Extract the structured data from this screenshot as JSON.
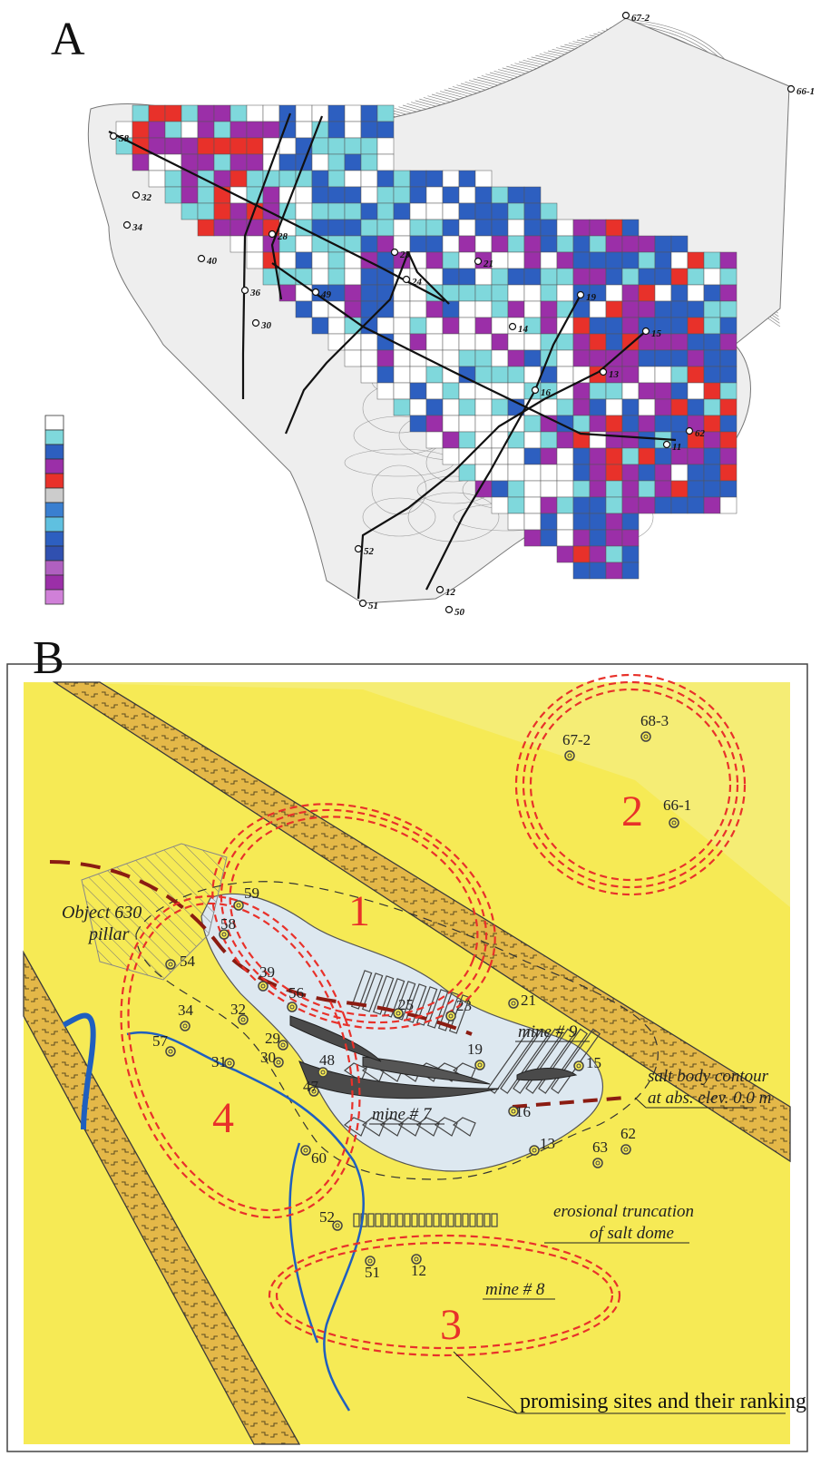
{
  "panel_a": {
    "letter": "A",
    "well_labels": [
      {
        "id": "w67-2",
        "text": "67-2"
      },
      {
        "id": "w66-1",
        "text": "66-1"
      },
      {
        "id": "w58",
        "text": "58"
      },
      {
        "id": "w32",
        "text": "32"
      },
      {
        "id": "w34",
        "text": "34"
      },
      {
        "id": "w40",
        "text": "40"
      },
      {
        "id": "w28",
        "text": "28"
      },
      {
        "id": "w36",
        "text": "36"
      },
      {
        "id": "w30",
        "text": "30"
      },
      {
        "id": "w49",
        "text": "49"
      },
      {
        "id": "w24",
        "text": "24"
      },
      {
        "id": "w25",
        "text": "25"
      },
      {
        "id": "w21",
        "text": "21"
      },
      {
        "id": "w19",
        "text": "19"
      },
      {
        "id": "w14",
        "text": "14"
      },
      {
        "id": "w15",
        "text": "15"
      },
      {
        "id": "w16",
        "text": "16"
      },
      {
        "id": "w13",
        "text": "13"
      },
      {
        "id": "w11",
        "text": "11"
      },
      {
        "id": "w62",
        "text": "62"
      },
      {
        "id": "w52",
        "text": "52"
      },
      {
        "id": "w51",
        "text": "51"
      },
      {
        "id": "w12",
        "text": "12"
      },
      {
        "id": "w50",
        "text": "50"
      }
    ],
    "legend_colors": [
      "#ffffff",
      "#7fd8dc",
      "#2d5fc0",
      "#9b2fa8",
      "#e8312a",
      "#cccccc",
      "#3a7fd0",
      "#5fc0e0",
      "#2d5fc0",
      "#3050b0",
      "#b060c0",
      "#9b2fa8",
      "#d080d8"
    ]
  },
  "panel_b": {
    "letter": "B",
    "site_numbers": [
      "1",
      "2",
      "3",
      "4"
    ],
    "wells": [
      {
        "id": "67-2",
        "label": "67-2"
      },
      {
        "id": "68-3",
        "label": "68-3"
      },
      {
        "id": "66-1",
        "label": "66-1"
      },
      {
        "id": "59",
        "label": "59"
      },
      {
        "id": "58",
        "label": "58"
      },
      {
        "id": "54",
        "label": "54"
      },
      {
        "id": "39",
        "label": "39"
      },
      {
        "id": "56",
        "label": "56"
      },
      {
        "id": "32",
        "label": "32"
      },
      {
        "id": "34",
        "label": "34"
      },
      {
        "id": "57",
        "label": "57"
      },
      {
        "id": "31",
        "label": "31"
      },
      {
        "id": "29",
        "label": "29"
      },
      {
        "id": "30",
        "label": "30"
      },
      {
        "id": "48",
        "label": "48"
      },
      {
        "id": "47",
        "label": "47"
      },
      {
        "id": "25",
        "label": "25"
      },
      {
        "id": "23",
        "label": "23"
      },
      {
        "id": "21",
        "label": "21"
      },
      {
        "id": "19",
        "label": "19"
      },
      {
        "id": "15",
        "label": "15"
      },
      {
        "id": "16",
        "label": "16"
      },
      {
        "id": "13",
        "label": "13"
      },
      {
        "id": "63",
        "label": "63"
      },
      {
        "id": "62",
        "label": "62"
      },
      {
        "id": "60",
        "label": "60"
      },
      {
        "id": "52",
        "label": "52"
      },
      {
        "id": "51",
        "label": "51"
      },
      {
        "id": "12",
        "label": "12"
      }
    ],
    "labels": {
      "object_630": "Object 630",
      "pillar": "pillar",
      "mine9": "mine # 9",
      "mine7": "mine # 7",
      "mine8": "mine # 8",
      "salt_contour_1": "salt body contour",
      "salt_contour_2": "at abs. elev. 0.0 m",
      "erosional_1": "erosional truncation",
      "erosional_2": "of salt dome",
      "promising": "promising sites and their ranking"
    },
    "colors": {
      "background": "#f7ec5a",
      "band_fill": "#e8b84a",
      "salt_body": "#dfe9f2",
      "ranking_red": "#e8312a",
      "river_blue": "#1f5fbf",
      "fault_red": "#8b1c12"
    }
  }
}
